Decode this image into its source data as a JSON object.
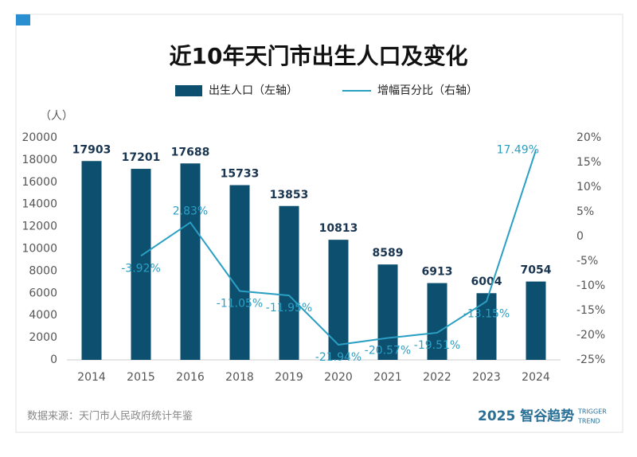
{
  "chart_data": {
    "type": "bar_line",
    "title": "近10年天门市出生人口及变化",
    "y_label": "（人）",
    "legend": [
      "出生人口（左轴）",
      "增幅百分比（右轴）"
    ],
    "categories": [
      "2014",
      "2015",
      "2016",
      "2018",
      "2019",
      "2020",
      "2021",
      "2022",
      "2023",
      "2024"
    ],
    "series": [
      {
        "name": "出生人口（左轴）",
        "color": "#0d4f6e",
        "values": [
          17903,
          17201,
          17688,
          15733,
          13853,
          10813,
          8589,
          6913,
          6004,
          7054
        ]
      },
      {
        "name": "增幅百分比（右轴）",
        "color": "#2a9fc4",
        "axis": "y2",
        "values": [
          null,
          -3.92,
          2.83,
          -11.05,
          -11.95,
          -21.94,
          -20.57,
          -19.51,
          -13.15,
          17.49
        ],
        "value_labels": [
          null,
          "-3.92%",
          "2.83%",
          "-11.05%",
          "-11.95%",
          "-21.94%",
          "-20.57%",
          "-19.51%",
          "-13.15%",
          "17.49%"
        ]
      }
    ],
    "ylim": [
      0,
      20000
    ],
    "yticks": [
      0,
      2000,
      4000,
      6000,
      8000,
      10000,
      12000,
      14000,
      16000,
      18000,
      20000
    ],
    "y2lim": [
      -25,
      20
    ],
    "y2ticks": [
      {
        "value": -25,
        "label": "-25%"
      },
      {
        "value": -20,
        "label": "-20%"
      },
      {
        "value": -15,
        "label": "-15%"
      },
      {
        "value": -10,
        "label": "-10%"
      },
      {
        "value": -5,
        "label": "-5%"
      },
      0,
      {
        "value": 5,
        "label": "5%"
      },
      {
        "value": 10,
        "label": "10%"
      },
      {
        "value": 15,
        "label": "15%"
      },
      {
        "value": 20,
        "label": "20%"
      }
    ],
    "source": "数据来源：天门市人民政府统计年鉴",
    "logo": "2025 智谷趋势",
    "logo_sub": [
      "TRIGGER",
      "TREND"
    ]
  }
}
